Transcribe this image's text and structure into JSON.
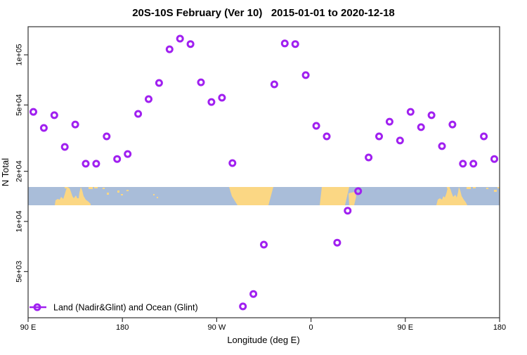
{
  "title": "20S-10S February (Ver 10)   2015-01-01 to 2020-12-18",
  "colors": {
    "point": "#A020F0",
    "ocean": "#A9BDD9",
    "land": "#FBD784",
    "axis": "#333333",
    "background": "#FFFFFF"
  },
  "chart_data": {
    "type": "scatter",
    "title": "20S-10S February (Ver 10)   2015-01-01 to 2020-12-18",
    "xlabel": "Longitude (deg E)",
    "ylabel": "N Total",
    "y_scale": "log",
    "x_axis": {
      "start_deg": 90,
      "end_deg": 540,
      "wrap_note": "x axis runs eastward from 90E around the globe and past the dateline again (450 deg total); 90E-180 data repeats at both ends",
      "ticks": [
        {
          "label": "90 E",
          "deg": 90
        },
        {
          "label": "180",
          "deg": 180
        },
        {
          "label": "90 W",
          "deg": 270
        },
        {
          "label": "0",
          "deg": 360
        },
        {
          "label": "90 E",
          "deg": 450
        },
        {
          "label": "180",
          "deg": 540
        }
      ]
    },
    "y_axis": {
      "ticks": [
        {
          "label": "1e+05",
          "value": 100000
        },
        {
          "label": "5e+04",
          "value": 50000
        },
        {
          "label": "2e+04",
          "value": 20000
        },
        {
          "label": "1e+04",
          "value": 10000
        },
        {
          "label": "5e+03",
          "value": 5000
        }
      ],
      "approx_range": [
        2500,
        200000
      ]
    },
    "legend": {
      "label": "Land (Nadir&Glint) and Ocean (Glint)",
      "marker": "open-circle-on-line",
      "position": "bottom-left-inside"
    },
    "map_band": {
      "description": "horizontal world-map strip of the 20S-10S latitude band (blue ocean, tan land)",
      "value_top": 16000,
      "value_bottom": 12600,
      "land_features": [
        "australia",
        "new-guinea",
        "melanesia-islands",
        "south-america",
        "africa",
        "madagascar",
        "australia-repeat",
        "fiji"
      ]
    },
    "series": [
      {
        "name": "Land (Nadir&Glint) and Ocean (Glint)",
        "marker": "open-circle",
        "color": "#A020F0",
        "points": [
          [
            95,
            45500
          ],
          [
            105,
            36400
          ],
          [
            115,
            43400
          ],
          [
            125,
            28000
          ],
          [
            135,
            38200
          ],
          [
            145,
            22200
          ],
          [
            155,
            22200
          ],
          [
            165,
            32400
          ],
          [
            175,
            23700
          ],
          [
            185,
            25400
          ],
          [
            195,
            44200
          ],
          [
            205,
            54200
          ],
          [
            215,
            67800
          ],
          [
            225,
            108000
          ],
          [
            235,
            125000
          ],
          [
            245,
            116000
          ],
          [
            255,
            68400
          ],
          [
            265,
            52100
          ],
          [
            275,
            55300
          ],
          [
            285,
            22400
          ],
          [
            295,
            3090
          ],
          [
            305,
            3670
          ],
          [
            315,
            7260
          ],
          [
            325,
            66500
          ],
          [
            335,
            117000
          ],
          [
            345,
            116000
          ],
          [
            355,
            75500
          ],
          [
            365,
            37500
          ],
          [
            375,
            32400
          ],
          [
            385,
            7460
          ],
          [
            395,
            11600
          ],
          [
            405,
            15200
          ],
          [
            415,
            24200
          ],
          [
            425,
            32400
          ],
          [
            435,
            39700
          ],
          [
            445,
            30600
          ],
          [
            455,
            45500
          ],
          [
            465,
            36800
          ],
          [
            475,
            43400
          ],
          [
            485,
            28300
          ],
          [
            495,
            38200
          ],
          [
            505,
            22200
          ],
          [
            515,
            22200
          ],
          [
            525,
            32400
          ],
          [
            535,
            23700
          ]
        ]
      }
    ]
  }
}
